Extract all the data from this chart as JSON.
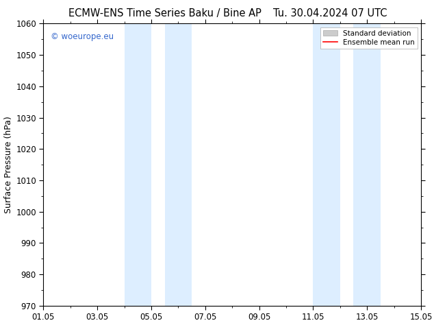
{
  "title_left": "ECMW-ENS Time Series Baku / Bine AP",
  "title_right": "Tu. 30.04.2024 07 UTC",
  "ylabel": "Surface Pressure (hPa)",
  "ylim": [
    970,
    1060
  ],
  "yticks": [
    970,
    980,
    990,
    1000,
    1010,
    1020,
    1030,
    1040,
    1050,
    1060
  ],
  "xlabel_ticks": [
    "01.05",
    "03.05",
    "05.05",
    "07.05",
    "09.05",
    "11.05",
    "13.05",
    "15.05"
  ],
  "xlabel_tick_positions": [
    0,
    2,
    4,
    6,
    8,
    10,
    12,
    14
  ],
  "x_min": 0,
  "x_max": 14,
  "shaded_bands": [
    {
      "x_start": 3.0,
      "x_end": 4.0
    },
    {
      "x_start": 4.5,
      "x_end": 5.5
    },
    {
      "x_start": 10.0,
      "x_end": 11.0
    },
    {
      "x_start": 11.5,
      "x_end": 12.5
    }
  ],
  "shade_color": "#ddeeff",
  "background_color": "#ffffff",
  "watermark_text": "© woeurope.eu",
  "watermark_color": "#3366cc",
  "legend_std_label": "Standard deviation",
  "legend_mean_label": "Ensemble mean run",
  "legend_std_color": "#cccccc",
  "legend_mean_color": "#ff0000",
  "title_fontsize": 10.5,
  "axis_fontsize": 9,
  "tick_fontsize": 8.5,
  "watermark_fontsize": 8.5
}
